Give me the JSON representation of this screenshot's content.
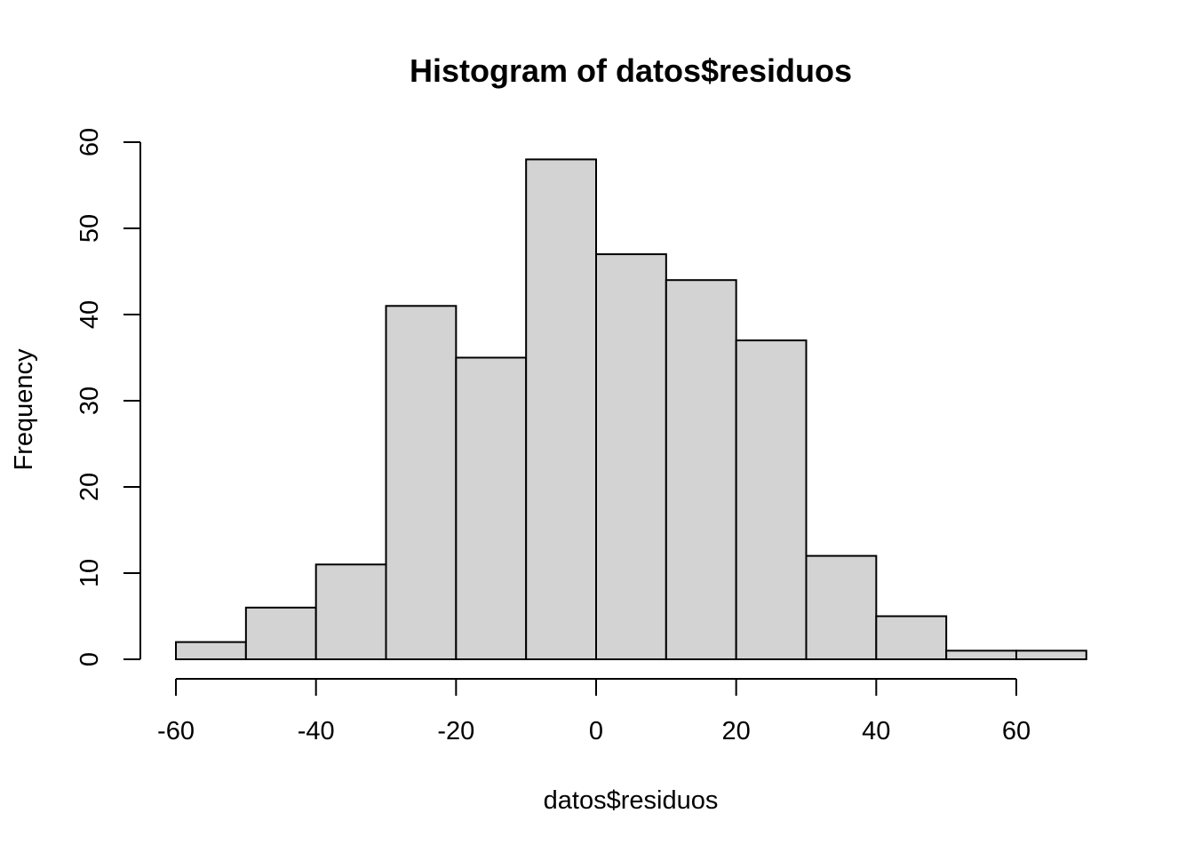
{
  "chart_data": {
    "type": "bar",
    "title": "Histogram of datos$residuos",
    "xlabel": "datos$residuos",
    "ylabel": "Frequency",
    "bins": [
      {
        "from": -60,
        "to": -50,
        "count": 2
      },
      {
        "from": -50,
        "to": -40,
        "count": 6
      },
      {
        "from": -40,
        "to": -30,
        "count": 11
      },
      {
        "from": -30,
        "to": -20,
        "count": 41
      },
      {
        "from": -20,
        "to": -10,
        "count": 35
      },
      {
        "from": -10,
        "to": 0,
        "count": 58
      },
      {
        "from": 0,
        "to": 10,
        "count": 47
      },
      {
        "from": 10,
        "to": 20,
        "count": 44
      },
      {
        "from": 20,
        "to": 30,
        "count": 37
      },
      {
        "from": 30,
        "to": 40,
        "count": 12
      },
      {
        "from": 40,
        "to": 50,
        "count": 5
      },
      {
        "from": 50,
        "to": 60,
        "count": 1
      },
      {
        "from": 60,
        "to": 70,
        "count": 1
      }
    ],
    "x_ticks": [
      -60,
      -40,
      -20,
      0,
      20,
      40,
      60
    ],
    "y_ticks": [
      0,
      10,
      20,
      30,
      40,
      50,
      60
    ],
    "xlim": [
      -60,
      70
    ],
    "ylim": [
      0,
      60
    ],
    "grid": false,
    "colors": {
      "bar_fill": "#d3d3d3",
      "bar_stroke": "#000000"
    }
  }
}
